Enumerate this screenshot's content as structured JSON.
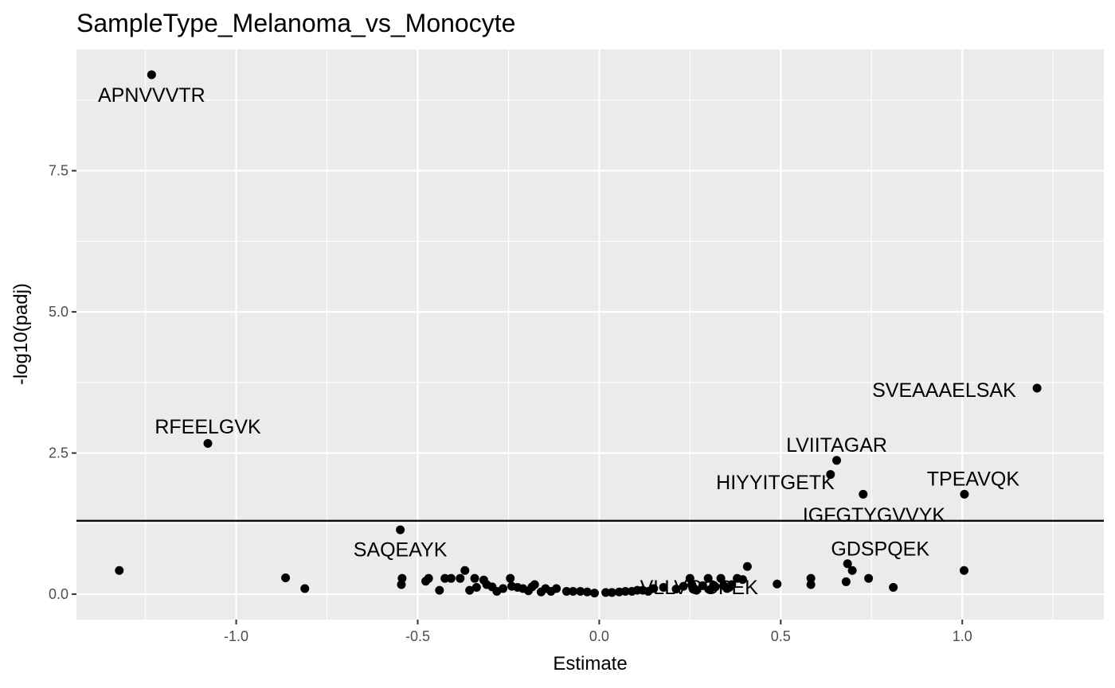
{
  "chart_data": {
    "type": "scatter",
    "title": "SampleType_Melanoma_vs_Monocyte",
    "xlabel": "Estimate",
    "ylabel": "-log10(padj)",
    "xlim": [
      -1.44,
      1.39
    ],
    "ylim": [
      -0.45,
      9.65
    ],
    "xticks": [
      -1.0,
      -0.5,
      0.0,
      0.5,
      1.0
    ],
    "xtick_labels": [
      "-1.0",
      "-0.5",
      "0.0",
      "0.5",
      "1.0"
    ],
    "yticks": [
      0.0,
      2.5,
      5.0,
      7.5
    ],
    "ytick_labels": [
      "0.0",
      "2.5",
      "5.0",
      "7.5"
    ],
    "grid": true,
    "threshold_y": 1.3,
    "colors": {
      "panel_background": "#ebebeb",
      "grid_major": "#ffffff",
      "point": "#000000",
      "threshold_line": "#000000",
      "tick_label": "#4d4d4d"
    },
    "points": [
      {
        "x": -1.233,
        "y": 9.2
      },
      {
        "x": -1.078,
        "y": 2.67
      },
      {
        "x": -1.322,
        "y": 0.42
      },
      {
        "x": -0.864,
        "y": 0.29
      },
      {
        "x": -0.811,
        "y": 0.1
      },
      {
        "x": -0.548,
        "y": 1.14
      },
      {
        "x": -0.543,
        "y": 0.28
      },
      {
        "x": -0.545,
        "y": 0.17
      },
      {
        "x": -0.478,
        "y": 0.23
      },
      {
        "x": -0.47,
        "y": 0.28
      },
      {
        "x": -0.44,
        "y": 0.07
      },
      {
        "x": -0.425,
        "y": 0.28
      },
      {
        "x": -0.408,
        "y": 0.28
      },
      {
        "x": -0.383,
        "y": 0.28
      },
      {
        "x": -0.37,
        "y": 0.42
      },
      {
        "x": -0.357,
        "y": 0.07
      },
      {
        "x": -0.343,
        "y": 0.28
      },
      {
        "x": -0.338,
        "y": 0.12
      },
      {
        "x": -0.318,
        "y": 0.25
      },
      {
        "x": -0.31,
        "y": 0.17
      },
      {
        "x": -0.295,
        "y": 0.13
      },
      {
        "x": -0.282,
        "y": 0.05
      },
      {
        "x": -0.265,
        "y": 0.1
      },
      {
        "x": -0.245,
        "y": 0.28
      },
      {
        "x": -0.241,
        "y": 0.14
      },
      {
        "x": -0.225,
        "y": 0.12
      },
      {
        "x": -0.21,
        "y": 0.1
      },
      {
        "x": -0.195,
        "y": 0.06
      },
      {
        "x": -0.185,
        "y": 0.13
      },
      {
        "x": -0.178,
        "y": 0.17
      },
      {
        "x": -0.16,
        "y": 0.04
      },
      {
        "x": -0.148,
        "y": 0.1
      },
      {
        "x": -0.133,
        "y": 0.05
      },
      {
        "x": -0.118,
        "y": 0.1
      },
      {
        "x": -0.09,
        "y": 0.05
      },
      {
        "x": -0.072,
        "y": 0.05
      },
      {
        "x": -0.052,
        "y": 0.05
      },
      {
        "x": -0.033,
        "y": 0.04
      },
      {
        "x": -0.013,
        "y": 0.02
      },
      {
        "x": 0.018,
        "y": 0.03
      },
      {
        "x": 0.035,
        "y": 0.03
      },
      {
        "x": 0.055,
        "y": 0.04
      },
      {
        "x": 0.072,
        "y": 0.05
      },
      {
        "x": 0.09,
        "y": 0.05
      },
      {
        "x": 0.105,
        "y": 0.07
      },
      {
        "x": 0.12,
        "y": 0.07
      },
      {
        "x": 0.135,
        "y": 0.05
      },
      {
        "x": 0.15,
        "y": 0.1
      },
      {
        "x": 0.177,
        "y": 0.12
      },
      {
        "x": 0.212,
        "y": 0.09
      },
      {
        "x": 0.232,
        "y": 0.14
      },
      {
        "x": 0.25,
        "y": 0.28
      },
      {
        "x": 0.255,
        "y": 0.17
      },
      {
        "x": 0.26,
        "y": 0.11
      },
      {
        "x": 0.268,
        "y": 0.07
      },
      {
        "x": 0.285,
        "y": 0.15
      },
      {
        "x": 0.3,
        "y": 0.28
      },
      {
        "x": 0.305,
        "y": 0.08
      },
      {
        "x": 0.315,
        "y": 0.16
      },
      {
        "x": 0.32,
        "y": 0.13
      },
      {
        "x": 0.335,
        "y": 0.28
      },
      {
        "x": 0.343,
        "y": 0.15
      },
      {
        "x": 0.352,
        "y": 0.1
      },
      {
        "x": 0.358,
        "y": 0.12
      },
      {
        "x": 0.365,
        "y": 0.17
      },
      {
        "x": 0.38,
        "y": 0.28
      },
      {
        "x": 0.395,
        "y": 0.26
      },
      {
        "x": 0.408,
        "y": 0.49
      },
      {
        "x": 0.49,
        "y": 0.18
      },
      {
        "x": 0.583,
        "y": 0.28
      },
      {
        "x": 0.583,
        "y": 0.17
      },
      {
        "x": 0.637,
        "y": 2.12
      },
      {
        "x": 0.654,
        "y": 2.37
      },
      {
        "x": 0.68,
        "y": 0.22
      },
      {
        "x": 0.684,
        "y": 0.54
      },
      {
        "x": 0.697,
        "y": 0.42
      },
      {
        "x": 0.727,
        "y": 1.77
      },
      {
        "x": 0.742,
        "y": 0.28
      },
      {
        "x": 0.81,
        "y": 0.12
      },
      {
        "x": 1.006,
        "y": 1.77
      },
      {
        "x": 1.005,
        "y": 0.42
      },
      {
        "x": 1.206,
        "y": 3.65
      }
    ],
    "labels": [
      {
        "text": "APNVVVTR",
        "x": -1.233,
        "y": 8.85
      },
      {
        "text": "RFEELGVK",
        "x": -1.078,
        "y": 2.97
      },
      {
        "text": "SAQEAYK",
        "x": -0.548,
        "y": 0.8
      },
      {
        "text": "SVEAAAELSAK",
        "x": 0.95,
        "y": 3.62
      },
      {
        "text": "LVIITAGAR",
        "x": 0.654,
        "y": 2.65
      },
      {
        "text": "HIYYITGETK",
        "x": 0.485,
        "y": 1.99
      },
      {
        "text": "TPEAVQK",
        "x": 1.03,
        "y": 2.05
      },
      {
        "text": "IGFGTYGVVYK",
        "x": 0.757,
        "y": 1.41
      },
      {
        "text": "GDSPQEK",
        "x": 0.774,
        "y": 0.81
      },
      {
        "text": "VLLVGGPEK",
        "x": 0.275,
        "y": 0.13
      }
    ]
  }
}
